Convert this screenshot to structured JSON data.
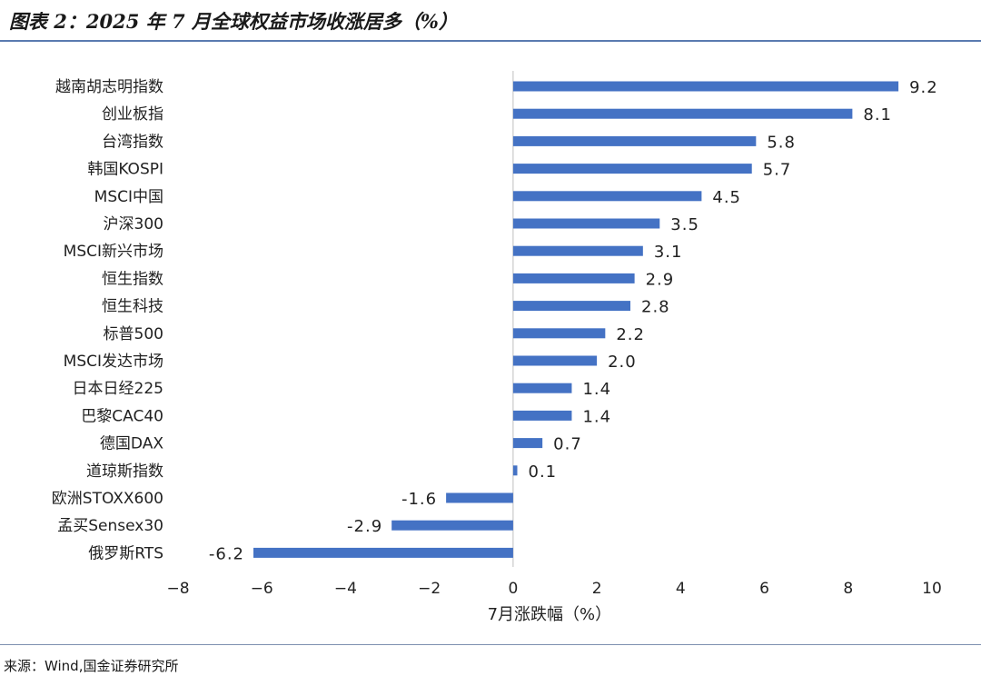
{
  "page": {
    "title": "图表 2：2025 年 7 月全球权益市场收涨居多（%）",
    "source": "来源：Wind,国金证券研究所"
  },
  "chart_data": {
    "type": "bar",
    "orientation": "horizontal",
    "categories": [
      "越南胡志明指数",
      "创业板指",
      "台湾指数",
      "韩国KOSPI",
      "MSCI中国",
      "沪深300",
      "MSCI新兴市场",
      "恒生指数",
      "恒生科技",
      "标普500",
      "MSCI发达市场",
      "日本日经225",
      "巴黎CAC40",
      "德国DAX",
      "道琼斯指数",
      "欧洲STOXX600",
      "孟买Sensex30",
      "俄罗斯RTS"
    ],
    "values": [
      9.2,
      8.1,
      5.8,
      5.7,
      4.5,
      3.5,
      3.1,
      2.9,
      2.8,
      2.2,
      2.0,
      1.4,
      1.4,
      0.7,
      0.1,
      -1.6,
      -2.9,
      -6.2
    ],
    "value_labels": [
      "9.2",
      "8.1",
      "5.8",
      "5.7",
      "4.5",
      "3.5",
      "3.1",
      "2.9",
      "2.8",
      "2.2",
      "2.0",
      "1.4",
      "1.4",
      "0.7",
      "0.1",
      "-1.6",
      "-2.9",
      "-6.2"
    ],
    "xlabel": "7月涨跌幅（%）",
    "xlim": [
      -8,
      10
    ],
    "xticks": [
      -8,
      -6,
      -4,
      -2,
      0,
      2,
      4,
      6,
      8,
      10
    ],
    "xtick_labels": [
      "−8",
      "−6",
      "−4",
      "−2",
      "0",
      "2",
      "4",
      "6",
      "8",
      "10"
    ],
    "bar_color": "#4472c4",
    "grid": false,
    "legend": "none"
  }
}
